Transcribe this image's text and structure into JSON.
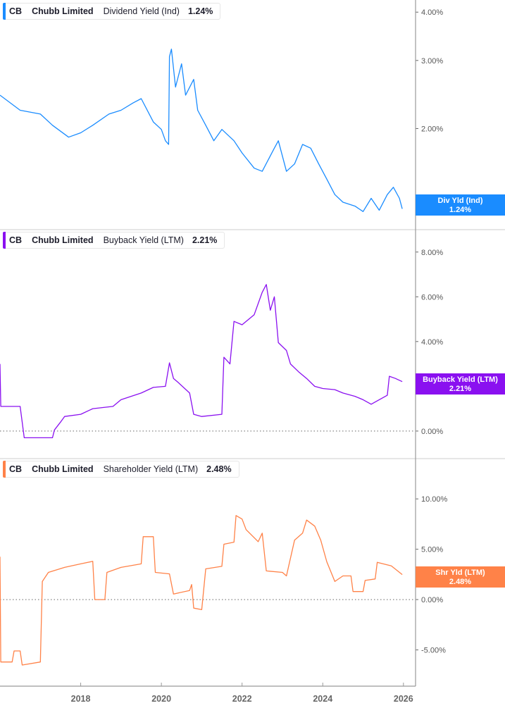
{
  "colors": {
    "dividend": "#1a8cff",
    "buyback": "#8a10f0",
    "shareholder": "#ff8248",
    "axis": "#999999"
  },
  "chart_data": [
    {
      "type": "line",
      "legend": {
        "ticker": "CB",
        "company": "Chubb Limited",
        "metric": "Dividend Yield (Ind)",
        "value": "1.24%"
      },
      "flag": {
        "label": "Div Yld (Ind)",
        "value": "1.24%"
      },
      "yscale": "log",
      "ylim": [
        1.1,
        4.3
      ],
      "yticks": [
        "4.00%",
        "3.00%",
        "2.00%"
      ],
      "ytick_values": [
        4,
        3,
        2
      ],
      "x": [
        2016.0,
        2016.5,
        2017.0,
        2017.3,
        2017.7,
        2018.0,
        2018.3,
        2018.7,
        2019.0,
        2019.3,
        2019.5,
        2019.8,
        2020.0,
        2020.1,
        2020.18,
        2020.2,
        2020.25,
        2020.35,
        2020.5,
        2020.6,
        2020.8,
        2020.9,
        2021.1,
        2021.3,
        2021.5,
        2021.8,
        2022.0,
        2022.3,
        2022.5,
        2022.8,
        2022.9,
        2023.1,
        2023.3,
        2023.5,
        2023.7,
        2023.9,
        2024.1,
        2024.3,
        2024.5,
        2024.8,
        2025.0,
        2025.2,
        2025.4,
        2025.6,
        2025.75,
        2025.9,
        2025.97
      ],
      "y": [
        2.44,
        2.23,
        2.18,
        2.04,
        1.9,
        1.95,
        2.04,
        2.18,
        2.23,
        2.33,
        2.39,
        2.08,
        1.99,
        1.86,
        1.82,
        3.07,
        3.21,
        2.56,
        2.94,
        2.44,
        2.68,
        2.23,
        2.04,
        1.86,
        1.99,
        1.86,
        1.73,
        1.58,
        1.55,
        1.78,
        1.86,
        1.55,
        1.62,
        1.82,
        1.78,
        1.62,
        1.48,
        1.35,
        1.29,
        1.26,
        1.22,
        1.32,
        1.23,
        1.35,
        1.41,
        1.32,
        1.24
      ]
    },
    {
      "type": "line",
      "legend": {
        "ticker": "CB",
        "company": "Chubb Limited",
        "metric": "Buyback Yield (LTM)",
        "value": "2.21%"
      },
      "flag": {
        "label": "Buyback Yield (LTM)",
        "value": "2.21%"
      },
      "yscale": "linear",
      "ylim": [
        -1.2,
        9.0
      ],
      "yticks": [
        "8.00%",
        "6.00%",
        "4.00%",
        "2.00%",
        "0.00%"
      ],
      "ytick_values": [
        8,
        6,
        4,
        2,
        0
      ],
      "x": [
        2016.0,
        2016.02,
        2016.5,
        2016.55,
        2016.6,
        2017.3,
        2017.35,
        2017.5,
        2017.6,
        2018.0,
        2018.3,
        2018.8,
        2019.0,
        2019.5,
        2019.8,
        2020.1,
        2020.2,
        2020.3,
        2020.4,
        2020.7,
        2020.8,
        2021.0,
        2021.5,
        2021.55,
        2021.7,
        2021.8,
        2022.0,
        2022.3,
        2022.5,
        2022.6,
        2022.7,
        2022.8,
        2022.9,
        2023.1,
        2023.2,
        2023.4,
        2023.6,
        2023.8,
        2024.0,
        2024.3,
        2024.5,
        2024.8,
        2025.0,
        2025.2,
        2025.4,
        2025.6,
        2025.65,
        2025.8,
        2025.97
      ],
      "y": [
        3.0,
        1.1,
        1.1,
        0.4,
        -0.3,
        -0.3,
        0.05,
        0.4,
        0.65,
        0.75,
        1.0,
        1.1,
        1.4,
        1.7,
        1.95,
        2.0,
        3.05,
        2.35,
        2.2,
        1.7,
        0.75,
        0.65,
        0.75,
        3.3,
        3.0,
        4.9,
        4.75,
        5.2,
        6.2,
        6.55,
        5.4,
        6.0,
        3.95,
        3.6,
        3.0,
        2.65,
        2.35,
        2.0,
        1.9,
        1.85,
        1.7,
        1.55,
        1.4,
        1.2,
        1.4,
        1.6,
        2.45,
        2.35,
        2.21
      ]
    },
    {
      "type": "line",
      "legend": {
        "ticker": "CB",
        "company": "Chubb Limited",
        "metric": "Shareholder Yield (LTM)",
        "value": "2.48%"
      },
      "flag": {
        "label": "Shr Yld (LTM)",
        "value": "2.48%"
      },
      "yscale": "linear",
      "ylim": [
        -8.6,
        14.0
      ],
      "yticks": [
        "10.00%",
        "5.00%",
        "0.00%",
        "-5.00%"
      ],
      "ytick_values": [
        10,
        5,
        0,
        -5
      ],
      "x": [
        2016.0,
        2016.02,
        2016.3,
        2016.35,
        2016.5,
        2016.55,
        2017.0,
        2017.05,
        2017.2,
        2017.6,
        2018.0,
        2018.3,
        2018.35,
        2018.6,
        2018.65,
        2019.0,
        2019.5,
        2019.55,
        2019.8,
        2019.85,
        2020.2,
        2020.3,
        2020.7,
        2020.75,
        2020.8,
        2021.0,
        2021.1,
        2021.5,
        2021.55,
        2021.8,
        2021.85,
        2022.0,
        2022.1,
        2022.4,
        2022.5,
        2022.6,
        2023.0,
        2023.1,
        2023.3,
        2023.5,
        2023.6,
        2023.8,
        2023.95,
        2024.1,
        2024.3,
        2024.5,
        2024.7,
        2024.75,
        2025.0,
        2025.05,
        2025.3,
        2025.35,
        2025.7,
        2025.97
      ],
      "y": [
        4.25,
        -6.2,
        -6.2,
        -5.1,
        -5.1,
        -6.5,
        -6.2,
        1.8,
        2.7,
        3.2,
        3.55,
        3.8,
        0,
        0,
        2.7,
        3.2,
        3.55,
        6.25,
        6.25,
        2.7,
        2.55,
        0.55,
        0.9,
        1.5,
        -0.85,
        -1.0,
        3.05,
        3.3,
        5.5,
        5.7,
        8.35,
        8.0,
        6.95,
        5.75,
        6.6,
        2.85,
        2.7,
        2.35,
        5.9,
        6.6,
        7.9,
        7.3,
        5.9,
        3.75,
        1.8,
        2.35,
        2.35,
        0.8,
        0.8,
        1.9,
        2.05,
        3.7,
        3.35,
        2.48
      ]
    }
  ],
  "xaxis": {
    "ticks": [
      "2018",
      "2020",
      "2022",
      "2024",
      "2026"
    ],
    "tick_values": [
      2018,
      2020,
      2022,
      2024,
      2026
    ],
    "xlim": [
      2016.0,
      2026.3
    ]
  }
}
